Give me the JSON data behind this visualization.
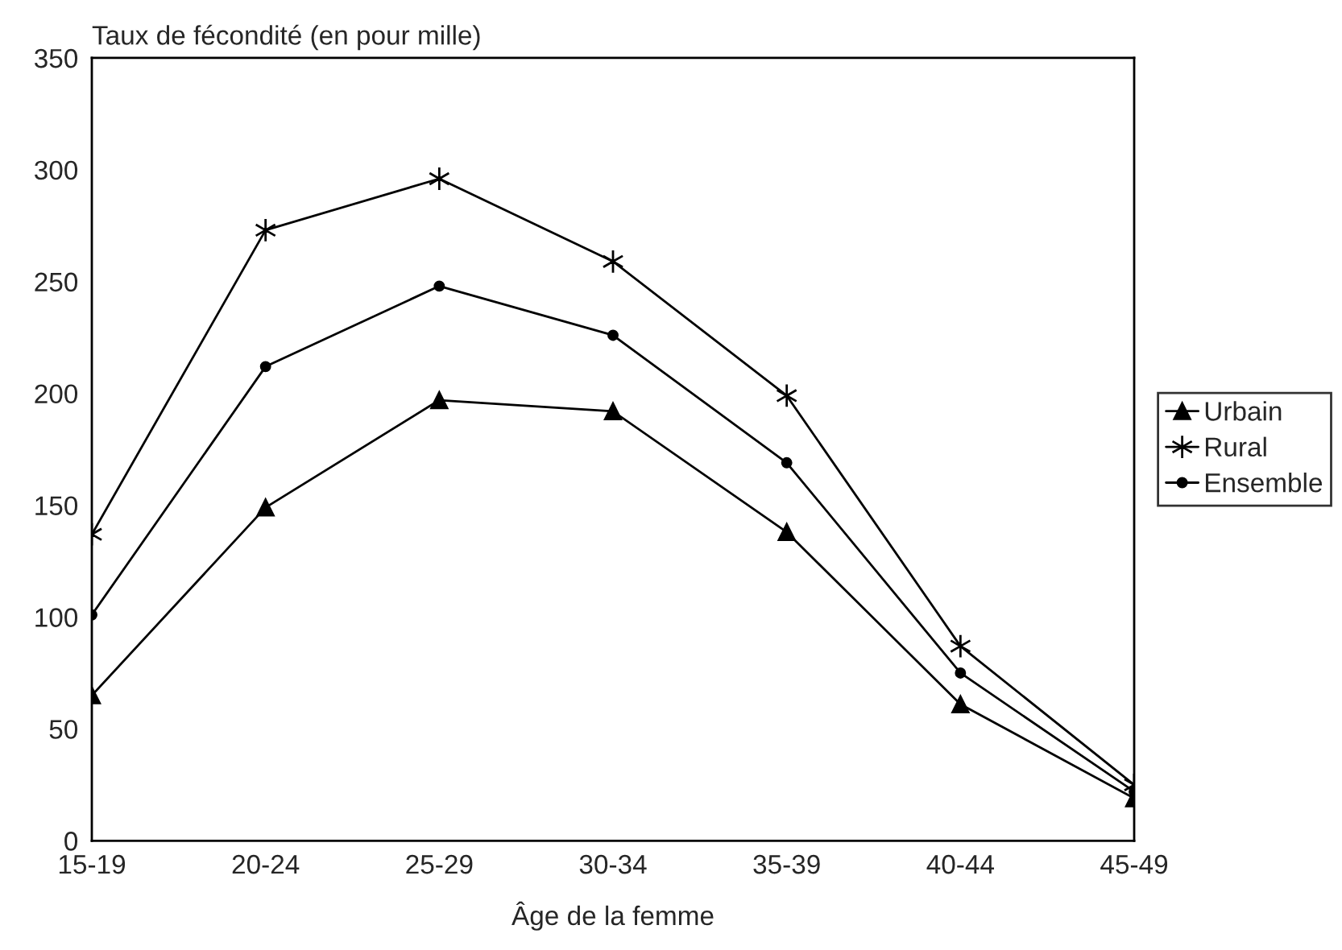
{
  "chart_data": {
    "type": "line",
    "xlabel": "Âge de la femme",
    "ylabel": "Taux de fécondité (en pour mille)",
    "categories": [
      "15-19",
      "20-24",
      "25-29",
      "30-34",
      "35-39",
      "40-44",
      "45-49"
    ],
    "series": [
      {
        "name": "Urbain",
        "color": "#000000",
        "marker": "triangle",
        "values": [
          65,
          149,
          197,
          192,
          138,
          61,
          19
        ]
      },
      {
        "name": "Rural",
        "color": "#000000",
        "marker": "cross",
        "values": [
          137,
          273,
          296,
          259,
          199,
          87,
          25
        ]
      },
      {
        "name": "Ensemble",
        "color": "#000000",
        "marker": "circle",
        "values": [
          101,
          212,
          248,
          226,
          169,
          75,
          22
        ]
      }
    ],
    "ylim": [
      0,
      350
    ],
    "yticks": [
      0,
      50,
      100,
      150,
      200,
      250,
      300,
      350
    ],
    "grid": false,
    "legend": "right",
    "line_style": "solid"
  }
}
